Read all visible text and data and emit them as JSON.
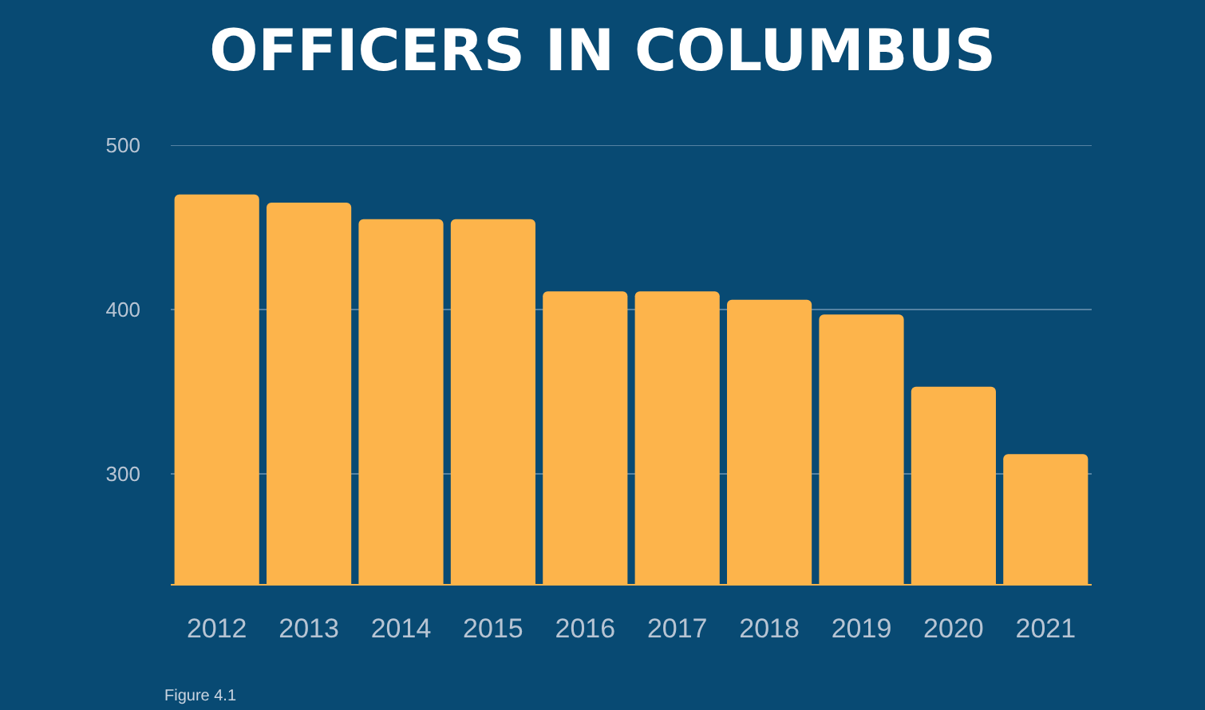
{
  "chart_data": {
    "type": "bar",
    "title": "OFFICERS IN COLUMBUS",
    "categories": [
      "2012",
      "2013",
      "2014",
      "2015",
      "2016",
      "2017",
      "2018",
      "2019",
      "2020",
      "2021"
    ],
    "values": [
      470,
      465,
      455,
      455,
      411,
      411,
      406,
      397,
      353,
      312
    ],
    "color": "#fdb44b",
    "ylim": [
      233,
      500
    ],
    "yticks": [
      300,
      400,
      500
    ],
    "grid": "y",
    "annotations": [
      "Figure 4.1"
    ]
  }
}
